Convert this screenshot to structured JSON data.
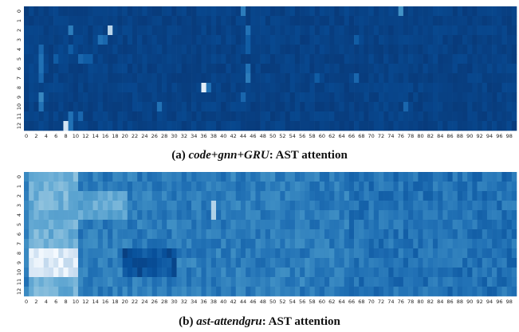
{
  "colors": {
    "low": "#08306b",
    "high": "#f7fbff"
  },
  "chart_data": [
    {
      "type": "heatmap",
      "caption": {
        "label": "(a)",
        "name": "code+gnn+GRU",
        "rest": ": AST attention"
      },
      "rows": 13,
      "cols": 100,
      "x_tick_labels": [
        "0",
        "2",
        "4",
        "6",
        "8",
        "10",
        "12",
        "14",
        "16",
        "18",
        "20",
        "22",
        "24",
        "26",
        "28",
        "30",
        "32",
        "34",
        "36",
        "38",
        "40",
        "42",
        "44",
        "46",
        "48",
        "50",
        "52",
        "54",
        "56",
        "58",
        "60",
        "62",
        "64",
        "66",
        "68",
        "70",
        "72",
        "74",
        "76",
        "78",
        "80",
        "82",
        "84",
        "86",
        "88",
        "90",
        "92",
        "94",
        "96",
        "98"
      ],
      "y_tick_labels": [
        "0",
        "1",
        "2",
        "3",
        "4",
        "5",
        "6",
        "7",
        "8",
        "9",
        "10",
        "11",
        "12"
      ],
      "base": 0.05,
      "cells": [
        [
          0,
          44,
          0.35
        ],
        [
          0,
          76,
          0.45
        ],
        [
          2,
          9,
          0.35
        ],
        [
          2,
          17,
          0.8
        ],
        [
          2,
          45,
          0.3
        ],
        [
          3,
          15,
          0.3
        ],
        [
          3,
          16,
          0.25
        ],
        [
          3,
          45,
          0.2
        ],
        [
          3,
          67,
          0.2
        ],
        [
          4,
          3,
          0.25
        ],
        [
          4,
          9,
          0.2
        ],
        [
          4,
          45,
          0.2
        ],
        [
          5,
          3,
          0.3
        ],
        [
          5,
          6,
          0.2
        ],
        [
          5,
          11,
          0.25
        ],
        [
          5,
          12,
          0.2
        ],
        [
          5,
          13,
          0.2
        ],
        [
          6,
          3,
          0.3
        ],
        [
          6,
          45,
          0.3
        ],
        [
          7,
          3,
          0.25
        ],
        [
          7,
          45,
          0.35
        ],
        [
          7,
          59,
          0.2
        ],
        [
          7,
          67,
          0.25
        ],
        [
          8,
          36,
          0.95
        ],
        [
          8,
          37,
          0.3
        ],
        [
          9,
          3,
          0.4
        ],
        [
          9,
          44,
          0.25
        ],
        [
          10,
          3,
          0.3
        ],
        [
          10,
          27,
          0.3
        ],
        [
          10,
          77,
          0.25
        ],
        [
          11,
          9,
          0.3
        ],
        [
          11,
          11,
          0.25
        ],
        [
          12,
          8,
          0.9
        ],
        [
          12,
          9,
          0.3
        ]
      ]
    },
    {
      "type": "heatmap",
      "caption": {
        "label": "(b)",
        "name": "ast-attendgru",
        "rest": ": AST attention"
      },
      "rows": 13,
      "cols": 100,
      "x_tick_labels": [
        "0",
        "2",
        "4",
        "6",
        "8",
        "10",
        "12",
        "14",
        "16",
        "18",
        "20",
        "22",
        "24",
        "26",
        "28",
        "30",
        "32",
        "34",
        "36",
        "38",
        "40",
        "42",
        "44",
        "46",
        "48",
        "50",
        "52",
        "54",
        "56",
        "58",
        "60",
        "62",
        "64",
        "66",
        "68",
        "70",
        "72",
        "74",
        "76",
        "78",
        "80",
        "82",
        "84",
        "86",
        "88",
        "90",
        "92",
        "94",
        "96",
        "98"
      ],
      "y_tick_labels": [
        "0",
        "1",
        "2",
        "3",
        "4",
        "5",
        "6",
        "7",
        "8",
        "9",
        "10",
        "11",
        "12"
      ],
      "note": "left columns 1-10 high attention (rows 8-10 near max), mid-range moderate, right third lower",
      "regions": [
        {
          "rows": [
            0,
            12
          ],
          "cols": [
            0,
            99
          ],
          "value": 0.35
        },
        {
          "rows": [
            0,
            12
          ],
          "cols": [
            1,
            10
          ],
          "value": 0.6
        },
        {
          "rows": [
            8,
            10
          ],
          "cols": [
            1,
            10
          ],
          "value": 0.92
        },
        {
          "rows": [
            2,
            4
          ],
          "cols": [
            10,
            20
          ],
          "value": 0.55
        },
        {
          "rows": [
            3,
            4
          ],
          "cols": [
            38,
            38
          ],
          "value": 0.85
        },
        {
          "rows": [
            8,
            10
          ],
          "cols": [
            20,
            30
          ],
          "value": 0.15
        },
        {
          "rows": [
            0,
            12
          ],
          "cols": [
            66,
            99
          ],
          "value": 0.3
        }
      ]
    }
  ]
}
